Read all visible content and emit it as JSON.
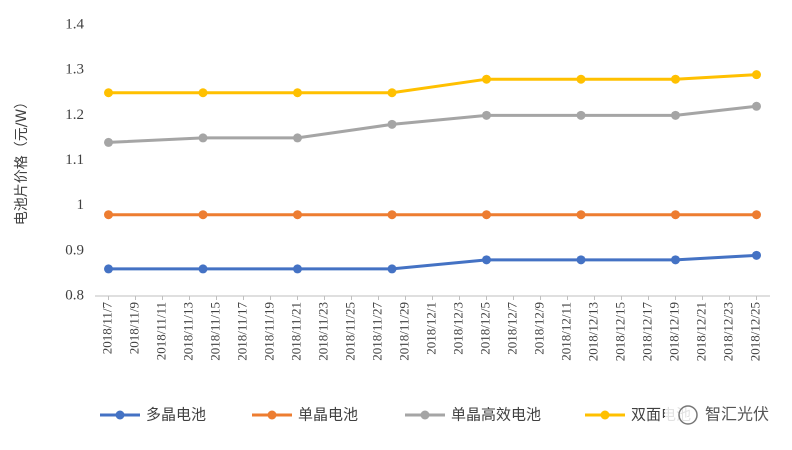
{
  "chart_data": {
    "type": "line",
    "y_label": "电池片价格（元/W）",
    "x": [
      "2018/11/7",
      "2018/11/14",
      "2018/11/21",
      "2018/11/28",
      "2018/12/5",
      "2018/12/12",
      "2018/12/19",
      "2018/12/25"
    ],
    "xlim": [
      "2018/11/6",
      "2018/12/26"
    ],
    "xticks": [
      "2018/11/7",
      "2018/11/9",
      "2018/11/11",
      "2018/11/13",
      "2018/11/15",
      "2018/11/17",
      "2018/11/19",
      "2018/11/21",
      "2018/11/23",
      "2018/11/25",
      "2018/11/27",
      "2018/11/29",
      "2018/12/1",
      "2018/12/3",
      "2018/12/5",
      "2018/12/7",
      "2018/12/9",
      "2018/12/11",
      "2018/12/13",
      "2018/12/15",
      "2018/12/17",
      "2018/12/19",
      "2018/12/21",
      "2018/12/23",
      "2018/12/25"
    ],
    "ylim": [
      0.8,
      1.4
    ],
    "yticks": [
      0.8,
      0.9,
      1,
      1.1,
      1.2,
      1.3,
      1.4
    ],
    "grid": false,
    "legend": "bottom",
    "series": [
      {
        "name": "多晶电池",
        "color": "#4472c4",
        "values": [
          0.86,
          0.86,
          0.86,
          0.86,
          0.88,
          0.88,
          0.88,
          0.89
        ]
      },
      {
        "name": "单晶电池",
        "color": "#ed7d31",
        "values": [
          0.98,
          0.98,
          0.98,
          0.98,
          0.98,
          0.98,
          0.98,
          0.98
        ]
      },
      {
        "name": "单晶高效电池",
        "color": "#a5a5a5",
        "values": [
          1.14,
          1.15,
          1.15,
          1.18,
          1.2,
          1.2,
          1.2,
          1.22
        ]
      },
      {
        "name": "双面电池",
        "color": "#ffc000",
        "values": [
          1.25,
          1.25,
          1.25,
          1.25,
          1.28,
          1.28,
          1.28,
          1.29
        ]
      }
    ],
    "watermark": "智汇光伏"
  }
}
